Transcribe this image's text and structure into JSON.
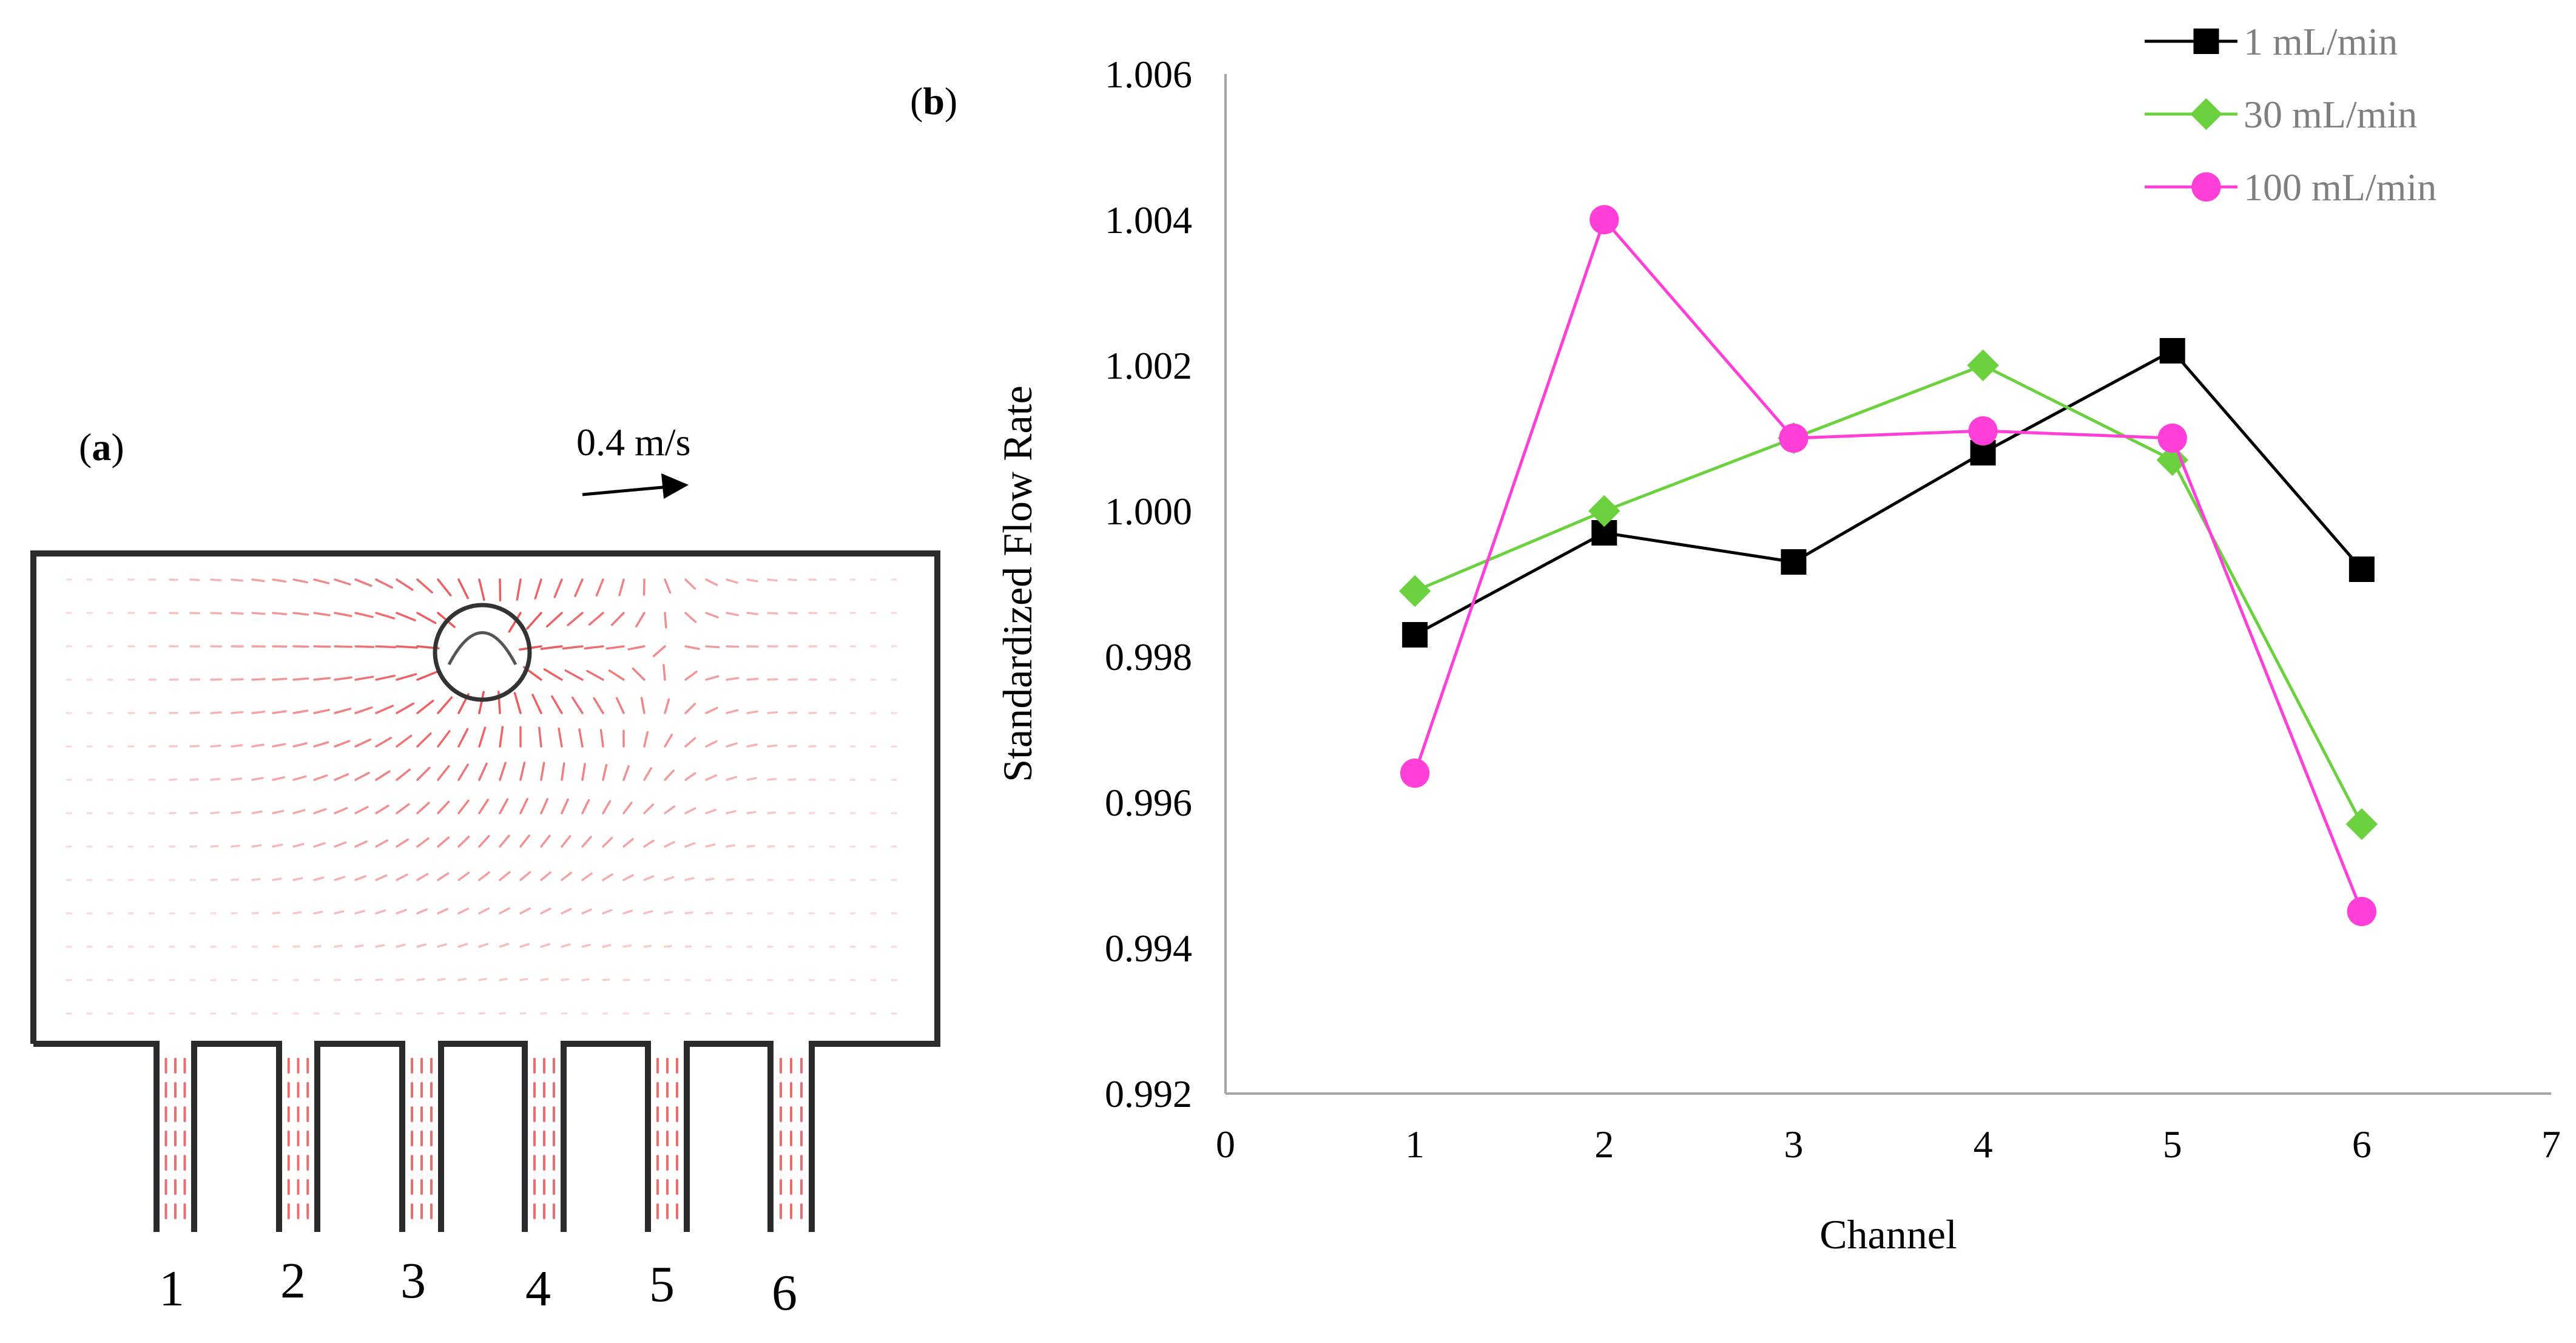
{
  "panel_a": {
    "label_open": "(",
    "label_letter": "a",
    "label_close": ")",
    "scale_label": "0.4 m/s",
    "channel_numbers": [
      "1",
      "2",
      "3",
      "4",
      "5",
      "6"
    ],
    "vector_color": "#e8393c",
    "wall_color": "#2b2b2b"
  },
  "panel_b": {
    "label_open": "(",
    "label_letter": "b",
    "label_close": ")"
  },
  "chart_data": {
    "type": "line",
    "title": "",
    "xlabel": "Channel",
    "ylabel": "Standardized Flow Rate",
    "xlim": [
      0,
      7
    ],
    "ylim": [
      0.992,
      1.006
    ],
    "xticks": [
      "0",
      "1",
      "2",
      "3",
      "4",
      "5",
      "6",
      "7"
    ],
    "yticks": [
      "0.992",
      "0.994",
      "0.996",
      "0.998",
      "1.000",
      "1.002",
      "1.004",
      "1.006"
    ],
    "x": [
      1,
      2,
      3,
      4,
      5,
      6
    ],
    "legend_position": "top-right",
    "grid": false,
    "series": [
      {
        "name": "1 mL/min",
        "values": [
          0.9983,
          0.9997,
          0.9993,
          1.0008,
          1.0022,
          0.9992
        ],
        "color": "#000000",
        "marker": "square"
      },
      {
        "name": "30 mL/min",
        "values": [
          0.9989,
          1.0,
          1.001,
          1.002,
          1.0007,
          0.9957
        ],
        "color": "#6bd13f",
        "marker": "diamond"
      },
      {
        "name": "100 mL/min",
        "values": [
          0.9964,
          1.004,
          1.001,
          1.0011,
          1.001,
          0.9945
        ],
        "color": "#ff3fd8",
        "marker": "circle"
      }
    ]
  }
}
